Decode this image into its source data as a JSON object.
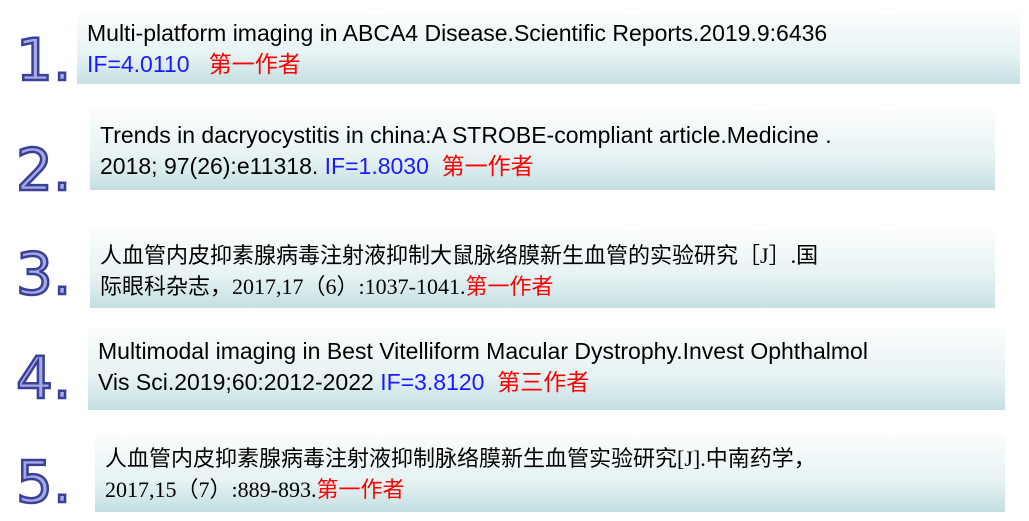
{
  "colors": {
    "impact_factor": "#1a1aff",
    "authorship": "#ff0000",
    "number": "#a4abe4",
    "number_outline": "#3b3f98"
  },
  "items": [
    {
      "number": "1.",
      "line1": "Multi-platform imaging in ABCA4 Disease.Scientific Reports.2019.9:6436",
      "line2": "",
      "impact_factor": "IF=4.0110",
      "role": "第一作者"
    },
    {
      "number": "2.",
      "line1": "Trends in dacryocystitis in china:A STROBE-compliant article.Medicine .",
      "line2": "2018; 97(26):e11318.",
      "impact_factor": "IF=1.8030",
      "role": "第一作者"
    },
    {
      "number": "3.",
      "line1": "人血管内皮抑素腺病毒注射液抑制大鼠脉络膜新生血管的实验研究［J］.国",
      "line2": "际眼科杂志，2017,17（6）:1037-1041.",
      "impact_factor": "",
      "role": "第一作者"
    },
    {
      "number": "4.",
      "line1": "Multimodal imaging in Best Vitelliform Macular Dystrophy.Invest Ophthalmol",
      "line2": "Vis Sci.2019;60:2012-2022",
      "impact_factor": "IF=3.8120",
      "role": "第三作者"
    },
    {
      "number": "5.",
      "line1": "人血管内皮抑素腺病毒注射液抑制脉络膜新生血管实验研究[J].中南药学，",
      "line2": "2017,15（7）:889-893.",
      "impact_factor": "",
      "role": "第一作者"
    }
  ]
}
